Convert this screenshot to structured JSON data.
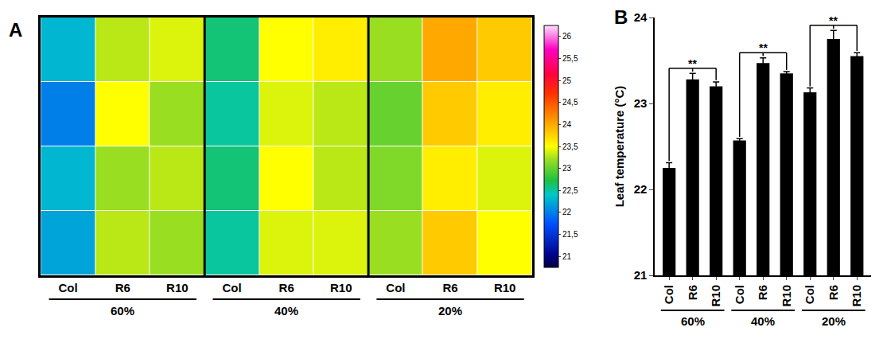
{
  "chart_data": [
    {
      "panel": "A",
      "type": "heatmap",
      "categories": [
        "Col",
        "R6",
        "R10",
        "Col",
        "R6",
        "R10",
        "Col",
        "R6",
        "R10"
      ],
      "groups": [
        "60%",
        "60%",
        "60%",
        "40%",
        "40%",
        "40%",
        "20%",
        "20%",
        "20%"
      ],
      "z": [
        [
          22.3,
          23.3,
          23.4,
          22.6,
          23.5,
          23.6,
          23.2,
          24.0,
          23.8
        ],
        [
          22.0,
          23.5,
          23.2,
          22.5,
          23.4,
          23.3,
          23.0,
          23.8,
          23.6
        ],
        [
          22.3,
          23.2,
          23.3,
          22.6,
          23.5,
          23.3,
          23.1,
          23.6,
          23.4
        ],
        [
          22.2,
          23.3,
          23.2,
          22.5,
          23.4,
          23.4,
          23.2,
          23.8,
          23.5
        ]
      ],
      "color_range": [
        20.75,
        26.25
      ],
      "color_ticks": [
        21,
        {
          "value": 21.5,
          "label": "21,5"
        },
        22,
        {
          "value": 22.5,
          "label": "22,5"
        },
        23,
        {
          "value": 23.5,
          "label": "23,5"
        },
        24,
        {
          "value": 24.5,
          "label": "24,5"
        },
        25,
        {
          "value": 25.5,
          "label": "25,5"
        },
        26
      ],
      "tick_labels": "x"
    },
    {
      "panel": "B",
      "type": "bar",
      "categories": [
        "Col",
        "R6",
        "R10",
        "Col",
        "R6",
        "R10",
        "Col",
        "R6",
        "R10"
      ],
      "groups": [
        "60%",
        "60%",
        "60%",
        "40%",
        "40%",
        "40%",
        "20%",
        "20%",
        "20%"
      ],
      "values": [
        22.25,
        23.28,
        23.2,
        22.57,
        23.47,
        23.35,
        23.13,
        23.75,
        23.55
      ],
      "errors": [
        0.06,
        0.07,
        0.05,
        0.02,
        0.06,
        0.02,
        0.05,
        0.1,
        0.04
      ],
      "color": "#000000",
      "ylabel": "Leaf temperature (°C)",
      "ylim": [
        21,
        24
      ],
      "yticks": [
        21,
        22,
        23,
        24
      ],
      "significance": [
        {
          "group": "60%",
          "label": "**"
        },
        {
          "group": "40%",
          "label": "**"
        },
        {
          "group": "20%",
          "label": "**"
        }
      ]
    }
  ]
}
